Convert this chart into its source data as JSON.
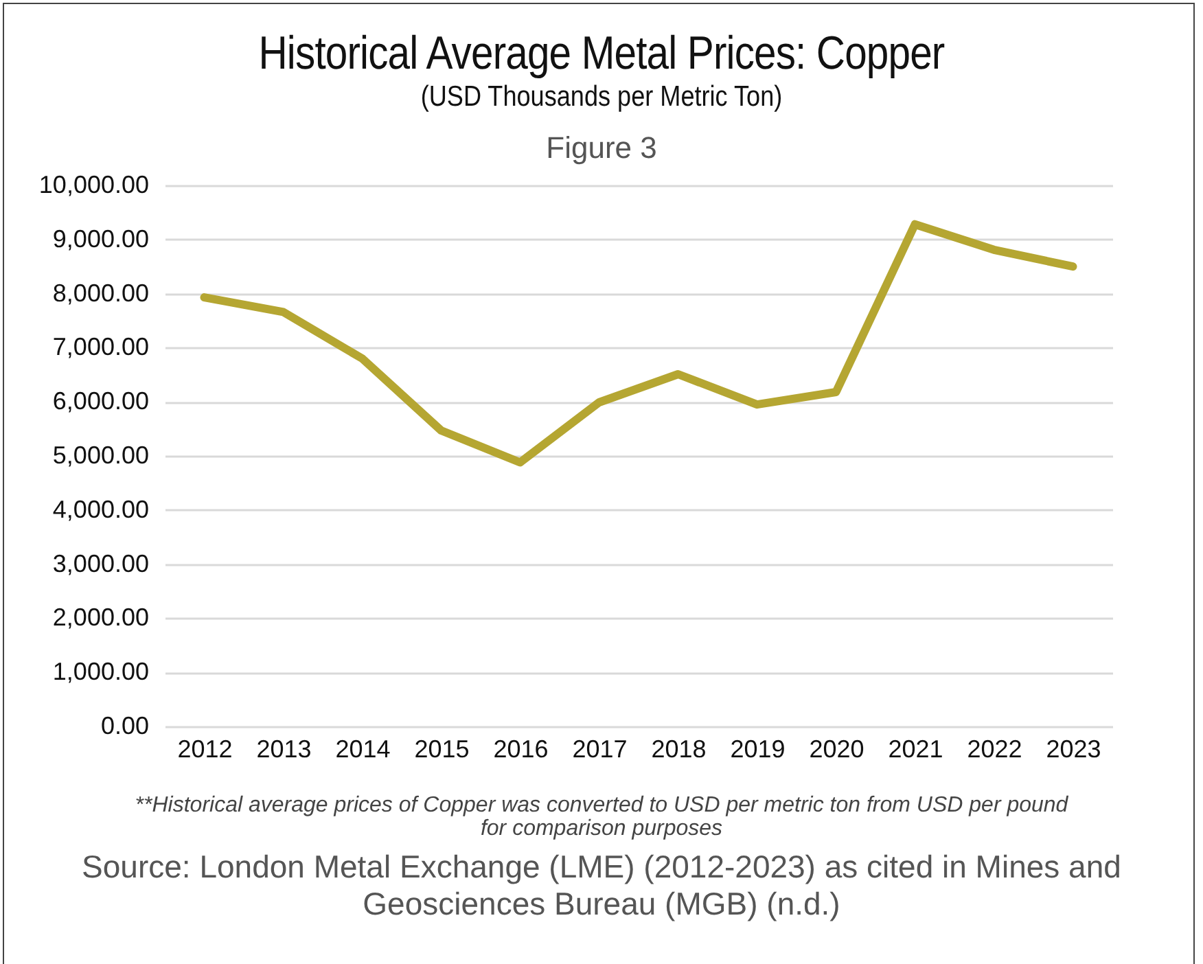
{
  "chart_data": {
    "type": "line",
    "title": "Historical Average Metal Prices: Copper",
    "subtitle": "(USD Thousands per Metric Ton)",
    "annotations": [
      "Figure  3",
      "**Historical average prices of Copper was converted to USD per metric ton from USD per pound for comparison purposes",
      "Source: London Metal Exchange (LME) (2012-2023) as cited in Mines and Geosciences Bureau (MGB) (n.d.)"
    ],
    "categories": [
      "2012",
      "2013",
      "2014",
      "2015",
      "2016",
      "2017",
      "2018",
      "2019",
      "2020",
      "2021",
      "2022",
      "2023"
    ],
    "series": [
      {
        "color": "#b5a632",
        "values": [
          7930,
          7660,
          6800,
          5470,
          4880,
          5990,
          6510,
          5950,
          6180,
          9280,
          8810,
          8500
        ]
      }
    ],
    "ylim": [
      0,
      10000
    ],
    "yticks": [
      {
        "value": 0,
        "label": "0.00"
      },
      {
        "value": 1000,
        "label": "1,000.00"
      },
      {
        "value": 2000,
        "label": "2,000.00"
      },
      {
        "value": 3000,
        "label": "3,000.00"
      },
      {
        "value": 4000,
        "label": "4,000.00"
      },
      {
        "value": 5000,
        "label": "5,000.00"
      },
      {
        "value": 6000,
        "label": "6,000.00"
      },
      {
        "value": 7000,
        "label": "7,000.00"
      },
      {
        "value": 8000,
        "label": "8,000.00"
      },
      {
        "value": 9000,
        "label": "9,000.00"
      },
      {
        "value": 10000,
        "label": "10,000.00"
      }
    ],
    "grid": "y",
    "legend": false,
    "marker": "none",
    "line_style": "solid"
  }
}
